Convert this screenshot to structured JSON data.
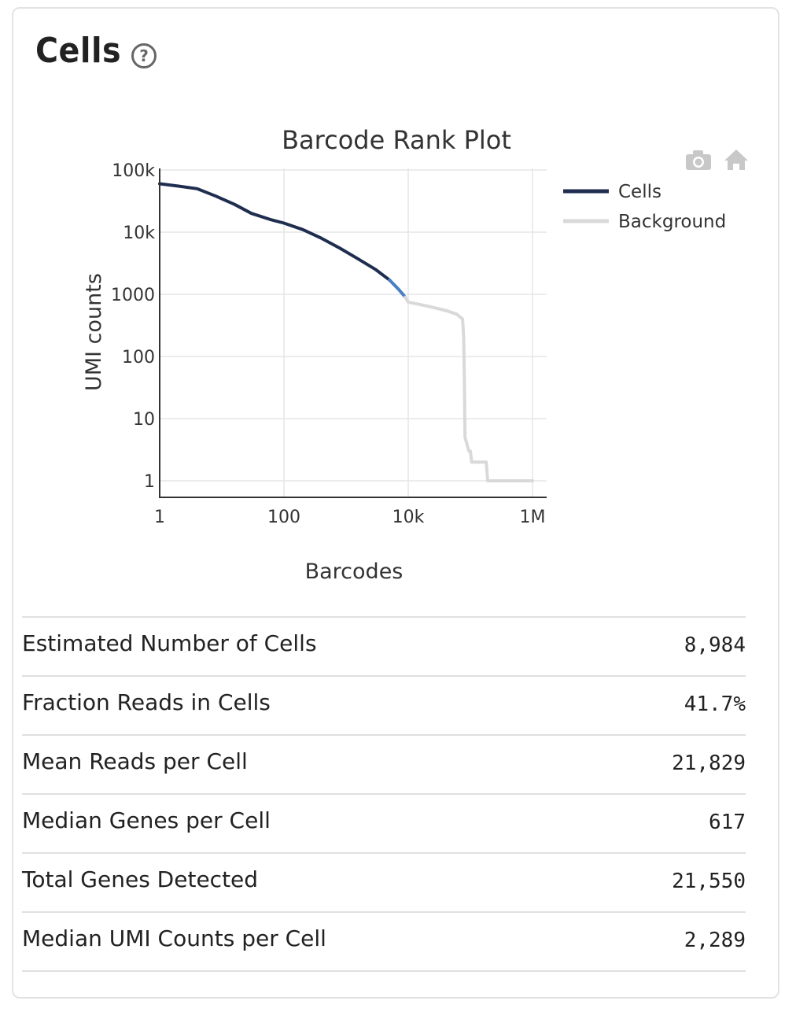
{
  "section": {
    "title": "Cells",
    "help_icon": "question-circle-icon"
  },
  "toolbar": {
    "camera_icon": "camera-icon",
    "home_icon": "home-icon"
  },
  "chart_data": {
    "type": "line",
    "title": "Barcode Rank Plot",
    "xlabel": "Barcodes",
    "ylabel": "UMI counts",
    "x_scale": "log",
    "y_scale": "log",
    "xlim": [
      1,
      1000000
    ],
    "ylim": [
      1,
      100000
    ],
    "x_ticks": [
      {
        "value": 1,
        "label": "1"
      },
      {
        "value": 100,
        "label": "100"
      },
      {
        "value": 10000,
        "label": "10k"
      },
      {
        "value": 1000000,
        "label": "1M"
      }
    ],
    "y_ticks": [
      {
        "value": 100000,
        "label": "100k"
      },
      {
        "value": 10000,
        "label": "10k"
      },
      {
        "value": 1000,
        "label": "1000"
      },
      {
        "value": 100,
        "label": "100"
      },
      {
        "value": 10,
        "label": "10"
      },
      {
        "value": 1,
        "label": "1"
      }
    ],
    "grid": true,
    "legend_position": "right",
    "series": [
      {
        "name": "Cells",
        "color": "#1f2d4f",
        "points": [
          [
            1,
            60000
          ],
          [
            2,
            55000
          ],
          [
            4,
            50000
          ],
          [
            8,
            38000
          ],
          [
            16,
            28000
          ],
          [
            30,
            20000
          ],
          [
            60,
            16000
          ],
          [
            100,
            14000
          ],
          [
            200,
            11000
          ],
          [
            400,
            8000
          ],
          [
            800,
            5500
          ],
          [
            1500,
            3800
          ],
          [
            3000,
            2500
          ],
          [
            5000,
            1700
          ]
        ]
      },
      {
        "name": "",
        "color": "#4a7fc1",
        "points": [
          [
            5000,
            1700
          ],
          [
            7000,
            1200
          ],
          [
            8984,
            900
          ]
        ]
      },
      {
        "name": "Background",
        "color": "#d9d9d9",
        "points": [
          [
            8984,
            900
          ],
          [
            10000,
            750
          ],
          [
            20000,
            650
          ],
          [
            40000,
            550
          ],
          [
            60000,
            480
          ],
          [
            75000,
            400
          ],
          [
            78000,
            200
          ],
          [
            80000,
            50
          ],
          [
            82000,
            5
          ],
          [
            95000,
            3
          ],
          [
            100000,
            3
          ],
          [
            105000,
            2
          ],
          [
            180000,
            2
          ],
          [
            190000,
            1
          ],
          [
            1000000,
            1
          ]
        ]
      }
    ]
  },
  "metrics": [
    {
      "label": "Estimated Number of Cells",
      "value": "8,984"
    },
    {
      "label": "Fraction Reads in Cells",
      "value": "41.7%"
    },
    {
      "label": "Mean Reads per Cell",
      "value": "21,829"
    },
    {
      "label": "Median Genes per Cell",
      "value": "617"
    },
    {
      "label": "Total Genes Detected",
      "value": "21,550"
    },
    {
      "label": "Median UMI Counts per Cell",
      "value": "2,289"
    }
  ]
}
